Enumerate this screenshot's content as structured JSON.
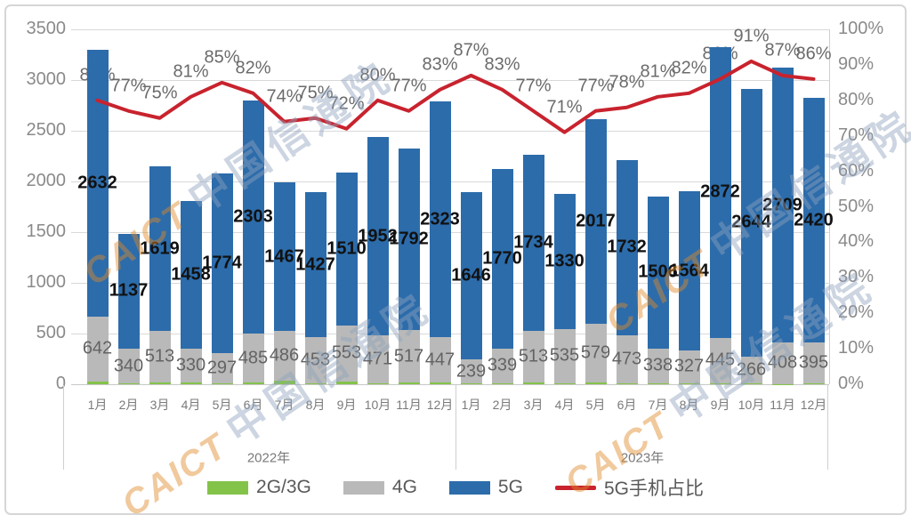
{
  "watermark": {
    "caict": "CAICT",
    "cn": "中国信通院"
  },
  "legend": {
    "items": [
      {
        "label": "2G/3G",
        "color": "#84c34a",
        "type": "swatch"
      },
      {
        "label": "4G",
        "color": "#b9b9b9",
        "type": "swatch"
      },
      {
        "label": "5G",
        "color": "#2c6cab",
        "type": "swatch"
      },
      {
        "label": "5G手机占比",
        "color": "#c8232e",
        "type": "line"
      }
    ]
  },
  "chart_data": {
    "type": "bar",
    "subtype": "stacked-column-with-line",
    "grid": "on",
    "left_axis": {
      "min": 0,
      "max": 3500,
      "ticks": [
        3500,
        3000,
        2500,
        2000,
        1500,
        1000,
        500,
        0
      ]
    },
    "right_axis": {
      "min": 0,
      "max": 100,
      "ticks": [
        "100%",
        "90%",
        "80%",
        "70%",
        "60%",
        "50%",
        "40%",
        "30%",
        "20%",
        "10%",
        "0%"
      ]
    },
    "months": [
      "1月",
      "2月",
      "3月",
      "4月",
      "5月",
      "6月",
      "7月",
      "8月",
      "9月",
      "10月",
      "11月",
      "12月",
      "1月",
      "2月",
      "3月",
      "4月",
      "5月",
      "6月",
      "7月",
      "8月",
      "9月",
      "10月",
      "11月",
      "12月"
    ],
    "year_groups": [
      {
        "label": "2022年",
        "months": 12
      },
      {
        "label": "2023年",
        "months": 12
      }
    ],
    "series": [
      {
        "name": "2G/3G",
        "color": "#84c34a",
        "labeled": false,
        "values": [
          28,
          9,
          14,
          20,
          10,
          14,
          38,
          12,
          29,
          13,
          15,
          16,
          7,
          13,
          15,
          13,
          14,
          9,
          11,
          9,
          11,
          6,
          4,
          13
        ]
      },
      {
        "name": "4G",
        "color": "#b9b9b9",
        "labeled": true,
        "values": [
          642,
          340,
          513,
          330,
          297,
          485,
          486,
          453,
          553,
          471,
          517,
          447,
          239,
          339,
          513,
          535,
          579,
          473,
          338,
          327,
          445,
          266,
          408,
          395
        ]
      },
      {
        "name": "5G",
        "color": "#2c6cab",
        "labeled": true,
        "values": [
          2632,
          1137,
          1619,
          1458,
          1774,
          2303,
          1467,
          1427,
          1510,
          1952,
          1792,
          2323,
          1646,
          1770,
          1734,
          1330,
          2017,
          1732,
          1506,
          1564,
          2872,
          2644,
          2709,
          2420
        ]
      }
    ],
    "line_series": {
      "name": "5G手机占比",
      "color": "#c8232e",
      "values_percent": [
        80,
        77,
        75,
        81,
        85,
        82,
        74,
        75,
        72,
        80,
        77,
        83,
        87,
        83,
        77,
        71,
        77,
        78,
        81,
        82,
        86,
        91,
        87,
        86
      ]
    }
  }
}
